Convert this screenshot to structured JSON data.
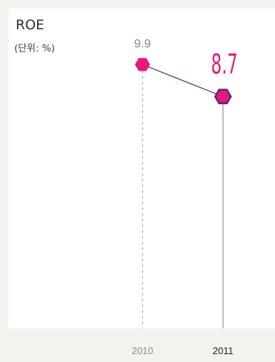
{
  "chart_data": {
    "type": "line",
    "title": "ROE",
    "subtitle": "(단위: %)",
    "categories": [
      "2010",
      "2011"
    ],
    "series": [
      {
        "values": [
          9.9,
          8.7
        ]
      }
    ],
    "data_labels": [
      "9.9",
      "8.7"
    ],
    "ylim": [
      0,
      15
    ],
    "grid": false,
    "legend": "none",
    "colors": {
      "line": "#4b2a8a",
      "marker_past": "#e8187a",
      "marker_current_fill": "#e8187a",
      "marker_current_stroke": "#4b2a8a",
      "highlight_label": "#e8187a",
      "past_text": "#8a8a8a",
      "current_text": "#222222",
      "past_drop_line": "#9a9a9a",
      "current_drop_line": "#7a7a7a"
    }
  }
}
